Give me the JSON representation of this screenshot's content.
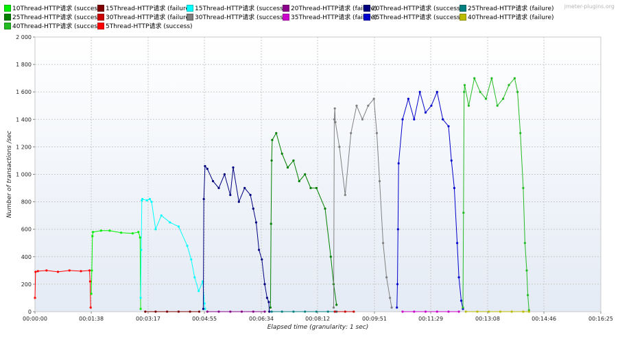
{
  "watermark": "jmeter-plugins.org",
  "legend": [
    {
      "label": "10Thread-HTTP请求 (success)",
      "color": "#00ee00"
    },
    {
      "label": "15Thread-HTTP请求 (failure)",
      "color": "#7f0000"
    },
    {
      "label": "15Thread-HTTP请求 (success)",
      "color": "#00ffff"
    },
    {
      "label": "20Thread-HTTP请求 (failure)",
      "color": "#8b008b"
    },
    {
      "label": "20Thread-HTTP请求 (success)",
      "color": "#00007f"
    },
    {
      "label": "25Thread-HTTP请求 (failure)",
      "color": "#008080"
    },
    {
      "label": "25Thread-HTTP请求 (success)",
      "color": "#007f00"
    },
    {
      "label": "30Thread-HTTP请求 (failure)",
      "color": "#cc0000"
    },
    {
      "label": "30Thread-HTTP请求 (success)",
      "color": "#7f7f7f"
    },
    {
      "label": "35Thread-HTTP请求 (failure)",
      "color": "#cc00cc"
    },
    {
      "label": "35Thread-HTTP请求 (success)",
      "color": "#0000cc"
    },
    {
      "label": "40Thread-HTTP请求 (failure)",
      "color": "#bbbb00"
    },
    {
      "label": "40Thread-HTTP请求 (success)",
      "color": "#22bb22"
    },
    {
      "label": "5Thread-HTTP请求 (success)",
      "color": "#ff0000"
    }
  ],
  "chart_data": {
    "type": "line",
    "xlabel": "Elapsed time (granularity: 1 sec)",
    "ylabel": "Number of transactions /sec",
    "xlim": [
      0,
      985
    ],
    "ylim": [
      0,
      2000
    ],
    "x_ticks": [
      0,
      98,
      197,
      295,
      394,
      492,
      591,
      689,
      788,
      886,
      985
    ],
    "x_tick_labels": [
      "00:00:00",
      "00:01:38",
      "00:03:17",
      "00:04:55",
      "00:06:34",
      "00:08:12",
      "00:09:51",
      "00:11:29",
      "00:13:08",
      "00:14:46",
      "00:16:25"
    ],
    "y_ticks": [
      0,
      200,
      400,
      600,
      800,
      1000,
      1200,
      1400,
      1600,
      1800,
      2000
    ],
    "y_tick_labels": [
      "0",
      "200",
      "400",
      "600",
      "800",
      "1 000",
      "1 200",
      "1 400",
      "1 600",
      "1 800",
      "2 000"
    ],
    "grid": true,
    "legend_position": "top",
    "series": [
      {
        "name": "5Thread-HTTP请求 (success)",
        "color": "#ff0000",
        "x": [
          0,
          1,
          5,
          20,
          40,
          60,
          80,
          95,
          96,
          97
        ],
        "y": [
          100,
          290,
          295,
          300,
          290,
          300,
          295,
          300,
          220,
          30
        ]
      },
      {
        "name": "10Thread-HTTP请求 (success)",
        "color": "#00ee00",
        "x": [
          98,
          99,
          100,
          101,
          115,
          130,
          150,
          170,
          180,
          183,
          184
        ],
        "y": [
          130,
          300,
          550,
          580,
          590,
          590,
          575,
          570,
          580,
          540,
          20
        ]
      },
      {
        "name": "15Thread-HTTP请求 (success)",
        "color": "#00ffff",
        "x": [
          184,
          185,
          186,
          187,
          195,
          200,
          203,
          210,
          220,
          235,
          250,
          265,
          272,
          278,
          285,
          292,
          295,
          296
        ],
        "y": [
          100,
          450,
          810,
          820,
          810,
          820,
          800,
          600,
          700,
          650,
          620,
          480,
          380,
          250,
          150,
          220,
          60,
          20
        ]
      },
      {
        "name": "15Thread-HTTP请求 (failure)",
        "color": "#7f0000",
        "x": [
          192,
          210,
          230,
          250,
          270,
          286
        ],
        "y": [
          0,
          0,
          0,
          0,
          0,
          0
        ]
      },
      {
        "name": "20Thread-HTTP请求 (success)",
        "color": "#00007f",
        "x": [
          293,
          294,
          296,
          300,
          310,
          320,
          330,
          340,
          345,
          355,
          365,
          375,
          380,
          385,
          390,
          395,
          400,
          404,
          407,
          408
        ],
        "y": [
          20,
          820,
          1060,
          1040,
          950,
          900,
          1000,
          850,
          1050,
          800,
          900,
          850,
          750,
          650,
          450,
          380,
          200,
          100,
          70,
          0
        ]
      },
      {
        "name": "20Thread-HTTP请求 (failure)",
        "color": "#8b008b",
        "x": [
          300,
          320,
          340,
          360,
          380,
          400
        ],
        "y": [
          0,
          0,
          0,
          0,
          0,
          0
        ]
      },
      {
        "name": "25Thread-HTTP请求 (success)",
        "color": "#007f00",
        "x": [
          410,
          411,
          412,
          413,
          420,
          430,
          440,
          450,
          460,
          470,
          480,
          490,
          505,
          515,
          520,
          525
        ],
        "y": [
          30,
          640,
          1100,
          1250,
          1300,
          1150,
          1050,
          1100,
          950,
          1000,
          900,
          900,
          750,
          400,
          200,
          50
        ]
      },
      {
        "name": "25Thread-HTTP请求 (failure)",
        "color": "#008080",
        "x": [
          412,
          430,
          450,
          470,
          490,
          510,
          525
        ],
        "y": [
          0,
          0,
          0,
          0,
          0,
          0,
          0
        ]
      },
      {
        "name": "30Thread-HTTP请求 (success)",
        "color": "#7f7f7f",
        "x": [
          520,
          521,
          522,
          523,
          530,
          540,
          550,
          560,
          570,
          580,
          590,
          595,
          600,
          606,
          612,
          618,
          621
        ],
        "y": [
          30,
          1400,
          1480,
          1380,
          1200,
          850,
          1300,
          1500,
          1400,
          1500,
          1550,
          1300,
          950,
          500,
          250,
          100,
          30
        ]
      },
      {
        "name": "30Thread-HTTP请求 (failure)",
        "color": "#cc0000",
        "x": [
          522,
          540,
          555
        ],
        "y": [
          0,
          0,
          0
        ]
      },
      {
        "name": "35Thread-HTTP请求 (success)",
        "color": "#0000cc",
        "x": [
          630,
          631,
          632,
          633,
          640,
          650,
          660,
          670,
          680,
          690,
          700,
          710,
          720,
          725,
          730,
          735,
          738,
          742,
          745
        ],
        "y": [
          30,
          200,
          600,
          1080,
          1400,
          1550,
          1400,
          1600,
          1450,
          1500,
          1600,
          1400,
          1350,
          1100,
          900,
          500,
          250,
          80,
          20
        ]
      },
      {
        "name": "35Thread-HTTP请求 (failure)",
        "color": "#cc00cc",
        "x": [
          640,
          660,
          680,
          700,
          720,
          738
        ],
        "y": [
          0,
          0,
          0,
          0,
          0,
          0
        ]
      },
      {
        "name": "40Thread-HTTP请求 (success)",
        "color": "#22bb22",
        "x": [
          745,
          746,
          747,
          748,
          755,
          765,
          775,
          785,
          795,
          805,
          815,
          825,
          835,
          840,
          845,
          850,
          853,
          856,
          858,
          860
        ],
        "y": [
          30,
          720,
          1600,
          1650,
          1500,
          1700,
          1600,
          1550,
          1700,
          1500,
          1550,
          1650,
          1700,
          1600,
          1300,
          900,
          500,
          300,
          120,
          10
        ]
      },
      {
        "name": "40Thread-HTTP请求 (failure)",
        "color": "#bbbb00",
        "x": [
          750,
          770,
          790,
          810,
          830,
          850,
          860
        ],
        "y": [
          0,
          0,
          0,
          0,
          0,
          0,
          0
        ]
      }
    ]
  }
}
